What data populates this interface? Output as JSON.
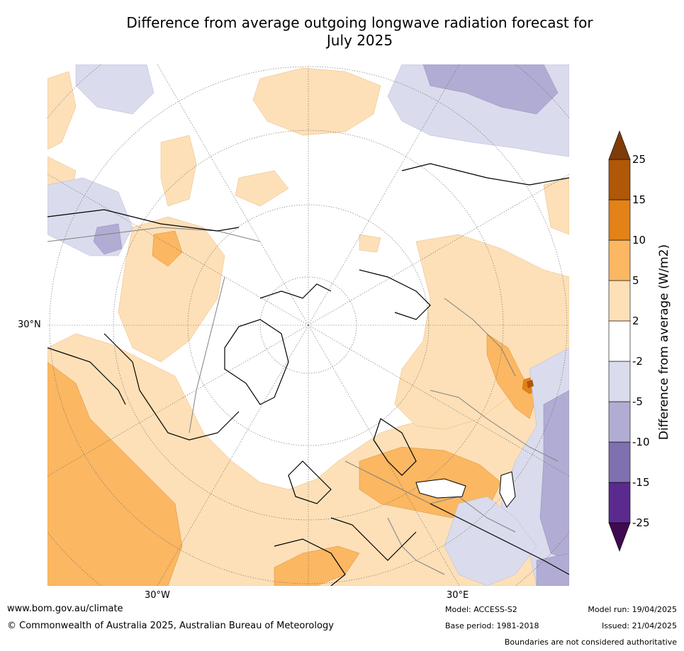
{
  "title": "Difference from average outgoing longwave radiation forecast for\nJuly 2025",
  "map": {
    "projection": "north-polar-stereographic",
    "lat_label": "30°N",
    "lon_labels": [
      "30°W",
      "30°E"
    ],
    "colors": {
      "land_border": "#808080",
      "coast": "#000000"
    }
  },
  "legend": {
    "label": "Difference from average (W/m2)",
    "tick_labels": [
      "-25",
      "-15",
      "-10",
      "-5",
      "-2",
      "2",
      "5",
      "10",
      "15",
      "25"
    ],
    "bands": [
      {
        "range": "< -25",
        "color": "#3f0a4f"
      },
      {
        "range": "-25 to -15",
        "color": "#5b2a8e"
      },
      {
        "range": "-15 to -10",
        "color": "#8070b0"
      },
      {
        "range": "-10 to -5",
        "color": "#b1acd3"
      },
      {
        "range": "-5 to -2",
        "color": "#dadbec"
      },
      {
        "range": "-2 to 2",
        "color": "#ffffff"
      },
      {
        "range": "2 to 5",
        "color": "#fde0b8"
      },
      {
        "range": "5 to 10",
        "color": "#fbb762"
      },
      {
        "range": "10 to 15",
        "color": "#e28218"
      },
      {
        "range": "15 to 25",
        "color": "#b05708"
      },
      {
        "range": "> 25",
        "color": "#7f3b08"
      }
    ]
  },
  "footer": {
    "url": "www.bom.gov.au/climate",
    "copyright": "© Commonwealth of Australia 2025, Australian Bureau of Meteorology",
    "model": "Model: ACCESS-S2",
    "base_period": "Base period: 1981-2018",
    "model_run": "Model run: 19/04/2025",
    "issued": "Issued: 21/04/2025",
    "disclaimer": "Boundaries are not considered authoritative"
  }
}
